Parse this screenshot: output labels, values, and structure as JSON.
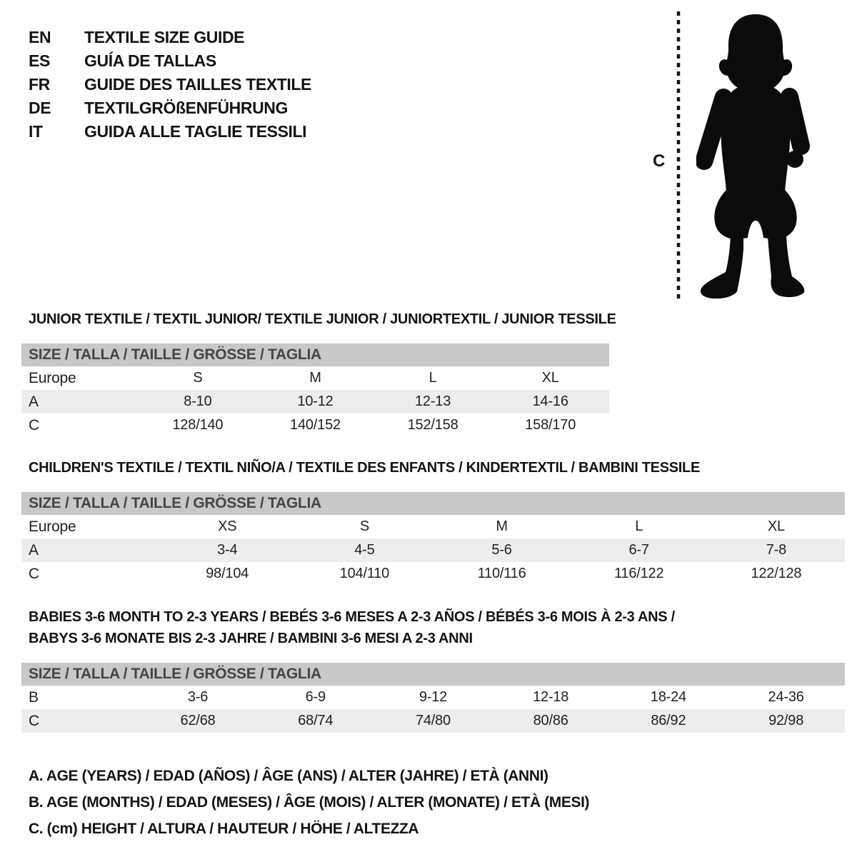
{
  "page": {
    "background": "#ffffff"
  },
  "colors": {
    "ink": "#1a1a1a",
    "table_text": "#222222",
    "header_bar_bg": "#c8c8c8",
    "header_bar_text": "#454545",
    "row_shade": "#ededed",
    "silhouette": "#0b0b0b"
  },
  "languages": [
    {
      "code": "EN",
      "title": "TEXTILE SIZE GUIDE"
    },
    {
      "code": "ES",
      "title": "GUÍA DE TALLAS"
    },
    {
      "code": "FR",
      "title": "GUIDE DES TAILLES TEXTILE"
    },
    {
      "code": "DE",
      "title": "TEXTILGRÖßENFÜHRUNG"
    },
    {
      "code": "IT",
      "title": "GUIDA ALLE TAGLIE TESSILI"
    }
  ],
  "figure": {
    "height_label": "C",
    "silhouette_icon": "toddler-silhouette-icon"
  },
  "sections": [
    {
      "id": "junior",
      "title_lines": [
        "JUNIOR TEXTILE / TEXTIL JUNIOR/ TEXTILE JUNIOR / JUNIORTEXTIL / JUNIOR TESSILE"
      ],
      "table": {
        "size_header": "SIZE / TALLA / TAILLE / GRÖSSE / TAGLIA",
        "rows": [
          {
            "label": "Europe",
            "values": [
              "S",
              "M",
              "L",
              "XL"
            ],
            "shaded": false
          },
          {
            "label": "A",
            "values": [
              "8-10",
              "10-12",
              "12-13",
              "14-16"
            ],
            "shaded": true
          },
          {
            "label": "C",
            "values": [
              "128/140",
              "140/152",
              "152/158",
              "158/170"
            ],
            "shaded": false
          }
        ]
      }
    },
    {
      "id": "children",
      "title_lines": [
        "CHILDREN'S TEXTILE / TEXTIL NIÑO/A / TEXTILE DES ENFANTS / KINDERTEXTIL / BAMBINI TESSILE"
      ],
      "table": {
        "size_header": "SIZE / TALLA / TAILLE / GRÖSSE / TAGLIA",
        "rows": [
          {
            "label": "Europe",
            "values": [
              "XS",
              "S",
              "M",
              "L",
              "XL"
            ],
            "shaded": false
          },
          {
            "label": "A",
            "values": [
              "3-4",
              "4-5",
              "5-6",
              "6-7",
              "7-8"
            ],
            "shaded": true
          },
          {
            "label": "C",
            "values": [
              "98/104",
              "104/110",
              "110/116",
              "116/122",
              "122/128"
            ],
            "shaded": false
          }
        ]
      }
    },
    {
      "id": "babies",
      "title_lines": [
        "BABIES 3-6 MONTH TO 2-3 YEARS / BEBÉS 3-6 MESES A 2-3 AÑOS / BÉBÉS 3-6 MOIS À 2-3 ANS /",
        "BABYS 3-6 MONATE BIS 2-3 JAHRE / BAMBINI 3-6 MESI A 2-3 ANNI"
      ],
      "table": {
        "size_header": "SIZE / TALLA / TAILLE / GRÖSSE / TAGLIA",
        "rows": [
          {
            "label": "B",
            "values": [
              "3-6",
              "6-9",
              "9-12",
              "12-18",
              "18-24",
              "24-36"
            ],
            "shaded": false
          },
          {
            "label": "C",
            "values": [
              "62/68",
              "68/74",
              "74/80",
              "80/86",
              "86/92",
              "92/98"
            ],
            "shaded": true
          }
        ]
      }
    }
  ],
  "legend": {
    "lines": [
      "A. AGE (YEARS) / EDAD (AÑOS) / ÂGE (ANS) / ALTER (JAHRE) / ETÀ (ANNI)",
      "B. AGE (MONTHS) / EDAD (MESES) / ÂGE (MOIS) / ALTER (MONATE) / ETÀ (MESI)",
      "C. (cm) HEIGHT / ALTURA / HAUTEUR / HÖHE / ALTEZZA"
    ]
  }
}
